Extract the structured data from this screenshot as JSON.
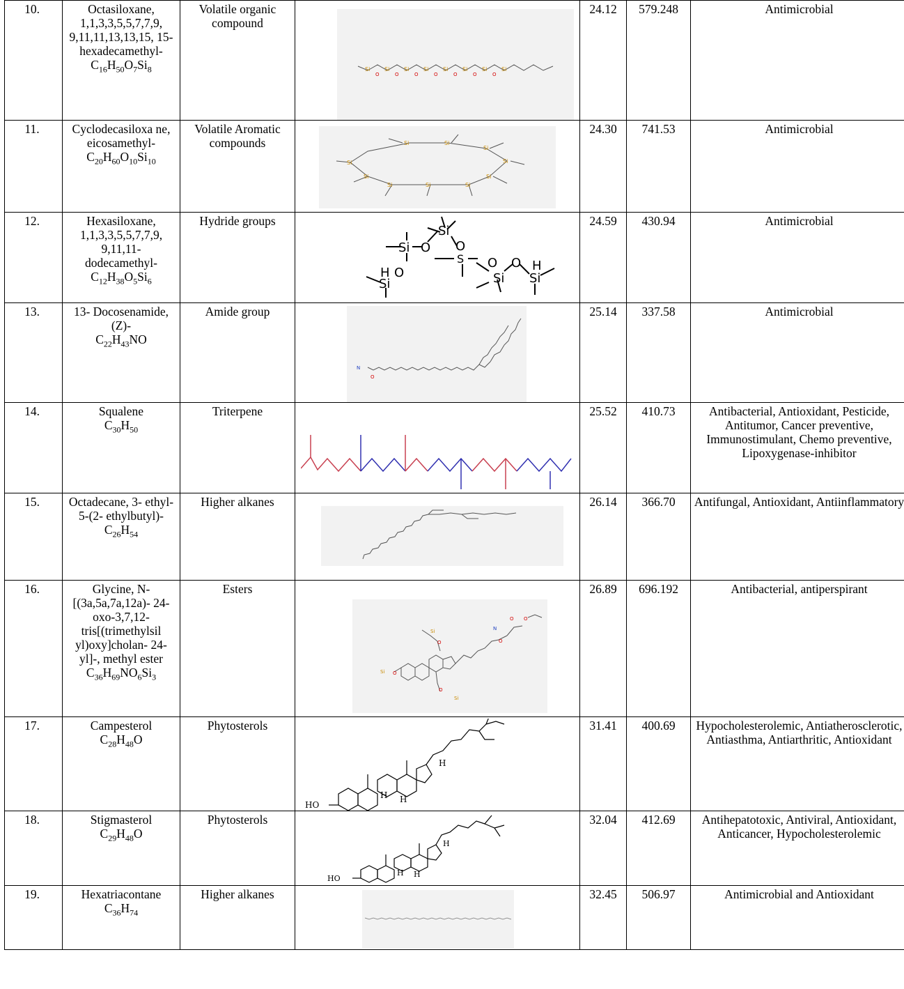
{
  "rows": [
    {
      "no": "10.",
      "name": "Octasiloxane, 1,1,3,3,5,5,7,7,9, 9,11,11,13,13,15, 15- hexadecamethyl-",
      "formula": {
        "parts": [
          [
            "C",
            ""
          ],
          [
            "16",
            "s"
          ],
          [
            "H",
            ""
          ],
          [
            "50",
            "s"
          ],
          [
            "O",
            ""
          ],
          [
            "7",
            "s"
          ],
          [
            "Si",
            ""
          ],
          [
            "8",
            "s"
          ]
        ]
      },
      "class": "Volatile organic compound",
      "rt": "24.12",
      "mw": "579.248",
      "activity": "Antimicrobial"
    },
    {
      "no": "11.",
      "name": "Cyclodecasiloxa ne, eicosamethyl-",
      "formula": {
        "parts": [
          [
            "C",
            ""
          ],
          [
            "20",
            "s"
          ],
          [
            "H",
            ""
          ],
          [
            "60",
            "s"
          ],
          [
            "O",
            ""
          ],
          [
            "10",
            "s"
          ],
          [
            "Si",
            ""
          ],
          [
            "10",
            "s"
          ]
        ]
      },
      "class": "Volatile Aromatic compounds",
      "rt": "24.30",
      "mw": "741.53",
      "activity": "Antimicrobial"
    },
    {
      "no": "12.",
      "name": "Hexasiloxane, 1,1,3,3,5,5,7,7,9, 9,11,11- dodecamethyl-",
      "formula": {
        "parts": [
          [
            "C",
            ""
          ],
          [
            "12",
            "s"
          ],
          [
            "H",
            ""
          ],
          [
            "38",
            "s"
          ],
          [
            "O",
            ""
          ],
          [
            "5",
            "s"
          ],
          [
            "Si",
            ""
          ],
          [
            "6",
            "s"
          ]
        ]
      },
      "class": "Hydride groups",
      "rt": "24.59",
      "mw": "430.94",
      "activity": "Antimicrobial"
    },
    {
      "no": "13.",
      "name": "13- Docosenamide, (Z)-",
      "formula": {
        "parts": [
          [
            "C",
            ""
          ],
          [
            "22",
            "s"
          ],
          [
            "H",
            ""
          ],
          [
            "43",
            "s"
          ],
          [
            "NO",
            ""
          ]
        ]
      },
      "class": "Amide group",
      "rt": "25.14",
      "mw": "337.58",
      "activity": "Antimicrobial"
    },
    {
      "no": "14.",
      "name": "Squalene",
      "formula": {
        "parts": [
          [
            "C",
            ""
          ],
          [
            "30",
            "s"
          ],
          [
            "H",
            ""
          ],
          [
            "50",
            "s"
          ]
        ]
      },
      "class": "Triterpene",
      "rt": "25.52",
      "mw": "410.73",
      "activity": "Antibacterial, Antioxidant, Pesticide, Antitumor, Cancer preventive, Immunostimulant, Chemo preventive, Lipoxygenase-inhibitor"
    },
    {
      "no": "15.",
      "name": "Octadecane, 3- ethyl-5-(2- ethylbutyl)-",
      "formula": {
        "parts": [
          [
            "C",
            ""
          ],
          [
            "26",
            "s"
          ],
          [
            "H",
            ""
          ],
          [
            "54",
            "s"
          ]
        ]
      },
      "class": "Higher alkanes",
      "rt": "26.14",
      "mw": "366.70",
      "activity": "Antifungal, Antioxidant, Antiinflammatory"
    },
    {
      "no": "16.",
      "name": "Glycine, N- [(3a,5a,7a,12a)- 24-oxo-3,7,12- tris[(trimethylsil yl)oxy]cholan- 24-yl]-, methyl ester",
      "formula": {
        "parts": [
          [
            "C",
            ""
          ],
          [
            "36",
            "s"
          ],
          [
            "H",
            ""
          ],
          [
            "69",
            "s"
          ],
          [
            "NO",
            ""
          ],
          [
            "6",
            "s"
          ],
          [
            "Si",
            ""
          ],
          [
            "3",
            "s"
          ]
        ]
      },
      "class": "Esters",
      "rt": "26.89",
      "mw": "696.192",
      "activity": "Antibacterial, antiperspirant"
    },
    {
      "no": "17.",
      "name": "Campesterol",
      "formula": {
        "parts": [
          [
            "C",
            ""
          ],
          [
            "28",
            "s"
          ],
          [
            "H",
            ""
          ],
          [
            "48",
            "s"
          ],
          [
            "O",
            ""
          ]
        ]
      },
      "class": "Phytosterols",
      "rt": "31.41",
      "mw": "400.69",
      "activity": "Hypocholesterolemic, Antiatherosclerotic, Antiasthma, Antiarthritic, Antioxidant"
    },
    {
      "no": "18.",
      "name": "Stigmasterol",
      "formula": {
        "parts": [
          [
            "C",
            ""
          ],
          [
            "29",
            "s"
          ],
          [
            "H",
            ""
          ],
          [
            "48",
            "s"
          ],
          [
            "O",
            ""
          ]
        ]
      },
      "class": "Phytosterols",
      "rt": "32.04",
      "mw": "412.69",
      "activity": "Antihepatotoxic, Antiviral, Antioxidant, Anticancer, Hypocholesterolemic"
    },
    {
      "no": "19.",
      "name": "Hexatriacontane",
      "formula": {
        "parts": [
          [
            "C",
            ""
          ],
          [
            "36",
            "s"
          ],
          [
            "H",
            ""
          ],
          [
            "74",
            "s"
          ]
        ]
      },
      "class": "Higher alkanes",
      "rt": "32.45",
      "mw": "506.97",
      "activity": "Antimicrobial and Antioxidant"
    }
  ],
  "structure_labels": {
    "si": "Si",
    "o": "O",
    "h": "H",
    "n": "N",
    "ho": "HO"
  }
}
